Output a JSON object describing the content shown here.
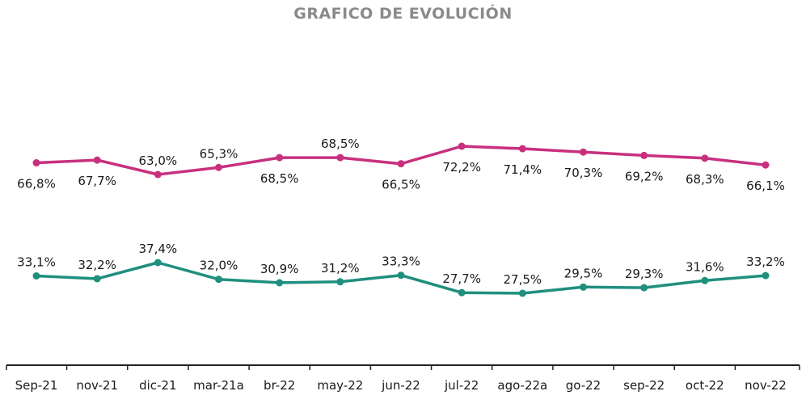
{
  "chart_data": {
    "type": "line",
    "title": "GRAFICO DE EVOLUCIÓN",
    "categories": [
      "Sep-21",
      "nov-21",
      "dic-21",
      "mar-21a",
      "br-22",
      "may-22",
      "jun-22",
      "jul-22",
      "ago-22a",
      "go-22",
      "sep-22",
      "oct-22",
      "nov-22"
    ],
    "series": [
      {
        "color": "#c8307e",
        "values": [
          66.8,
          67.7,
          63.0,
          65.3,
          68.5,
          68.5,
          66.5,
          72.2,
          71.4,
          70.3,
          69.2,
          68.3,
          66.1
        ],
        "labels": [
          "66,8%",
          "67,7%",
          "63,0%",
          "65,3%",
          "68,5%",
          "68,5%",
          "66,5%",
          "72,2%",
          "71,4%",
          "70,3%",
          "69,2%",
          "68,3%",
          "66,1%"
        ],
        "label_positions": [
          "below",
          "below",
          "above",
          "above",
          "below",
          "above",
          "below",
          "below",
          "below",
          "below",
          "below",
          "below",
          "below"
        ]
      },
      {
        "color": "#1f8f7e",
        "values": [
          33.1,
          32.2,
          37.4,
          32.0,
          30.9,
          31.2,
          33.3,
          27.7,
          27.5,
          29.5,
          29.3,
          31.6,
          33.2
        ],
        "labels": [
          "33,1%",
          "32,2%",
          "37,4%",
          "32,0%",
          "30,9%",
          "31,2%",
          "33,3%",
          "27,7%",
          "27,5%",
          "29,5%",
          "29,3%",
          "31,6%",
          "33,2%"
        ],
        "label_positions": [
          "above",
          "above",
          "above",
          "above",
          "above",
          "above",
          "above",
          "above",
          "above",
          "above",
          "above",
          "above",
          "above"
        ]
      }
    ],
    "grid": false,
    "legend": "none"
  }
}
